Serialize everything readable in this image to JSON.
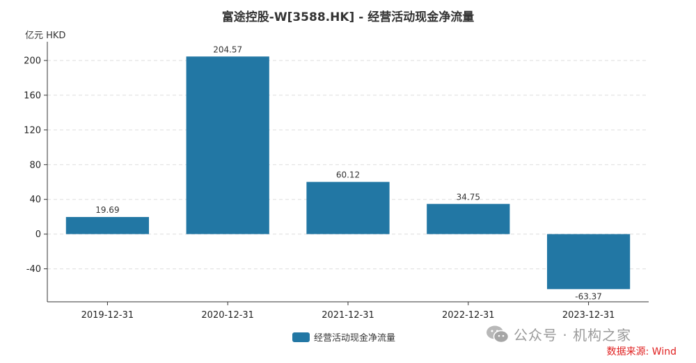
{
  "chart_data": {
    "type": "bar",
    "title": "富途控股-W[3588.HK] - 经营活动现金净流量",
    "ylabel": "亿元  HKD",
    "categories": [
      "2019-12-31",
      "2020-12-31",
      "2021-12-31",
      "2022-12-31",
      "2023-12-31"
    ],
    "series": [
      {
        "name": "经营活动现金净流量",
        "values": [
          19.69,
          204.57,
          60.12,
          34.75,
          -63.37
        ]
      }
    ],
    "data_labels": [
      "19.69",
      "204.57",
      "60.12",
      "34.75",
      "-63.37"
    ],
    "yticks": [
      -40,
      0,
      40,
      80,
      120,
      160,
      200
    ],
    "ylim": [
      -78,
      220
    ],
    "grid": true,
    "legend": "bottom-center",
    "bar_color": "#2277a4"
  },
  "watermark": {
    "icon": "wechat-icon",
    "text": "公众号 · 机构之家"
  },
  "source": "数据来源: Wind"
}
